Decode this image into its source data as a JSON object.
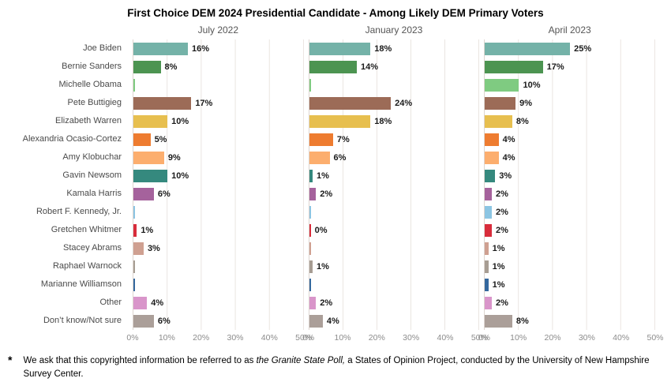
{
  "title": "First Choice DEM 2024 Presidential Candidate - Among Likely DEM Primary Voters",
  "chart_data": {
    "type": "bar",
    "orientation": "horizontal",
    "xlim": [
      0,
      50
    ],
    "grid": true,
    "x_ticks": [
      "0%",
      "10%",
      "20%",
      "30%",
      "40%",
      "50%"
    ],
    "panels": [
      "July 2022",
      "January 2023",
      "April 2023"
    ],
    "categories": [
      "Joe Biden",
      "Bernie Sanders",
      "Michelle Obama",
      "Pete Buttigieg",
      "Elizabeth Warren",
      "Alexandria Ocasio-Cortez",
      "Amy Klobuchar",
      "Gavin Newsom",
      "Kamala Harris",
      "Robert F. Kennedy, Jr.",
      "Gretchen Whitmer",
      "Stacey Abrams",
      "Raphael Warnock",
      "Marianne Williamson",
      "Other",
      "Don’t know/Not sure"
    ],
    "colors": [
      "#74b2a8",
      "#4c9451",
      "#7fcb81",
      "#9c6b57",
      "#e7bf4f",
      "#ee7c30",
      "#fcae6e",
      "#35897e",
      "#a5629c",
      "#8cc5e3",
      "#d82c3b",
      "#cfa091",
      "#a79d93",
      "#34689e",
      "#d995ca",
      "#ab9f99"
    ],
    "series": [
      {
        "name": "July 2022",
        "values": [
          16,
          8,
          0,
          17,
          10,
          5,
          9,
          10,
          6,
          0,
          1,
          3,
          0,
          0,
          4,
          6
        ],
        "labels": [
          "16%",
          "8%",
          "",
          "17%",
          "10%",
          "5%",
          "9%",
          "10%",
          "6%",
          "",
          "1%",
          "3%",
          "",
          "",
          "4%",
          "6%"
        ]
      },
      {
        "name": "January 2023",
        "values": [
          18,
          14,
          0,
          24,
          18,
          7,
          6,
          1,
          2,
          0,
          0,
          0,
          1,
          0,
          2,
          4
        ],
        "labels": [
          "18%",
          "14%",
          "",
          "24%",
          "18%",
          "7%",
          "6%",
          "1%",
          "2%",
          "",
          "0%",
          "",
          "1%",
          "",
          "2%",
          "4%"
        ]
      },
      {
        "name": "April 2023",
        "values": [
          25,
          17,
          10,
          9,
          8,
          4,
          4,
          3,
          2,
          2,
          2,
          1,
          1,
          1,
          2,
          8
        ],
        "labels": [
          "25%",
          "17%",
          "10%",
          "9%",
          "8%",
          "4%",
          "4%",
          "3%",
          "2%",
          "2%",
          "2%",
          "1%",
          "1%",
          "1%",
          "2%",
          "8%"
        ]
      }
    ]
  },
  "footnote": {
    "marker": "*",
    "prefix": "We ask that this copyrighted information be referred to as ",
    "italic": "the Granite State Poll,",
    "suffix": " a States of Opinion Project, conducted by the University of New Hampshire Survey Center."
  }
}
